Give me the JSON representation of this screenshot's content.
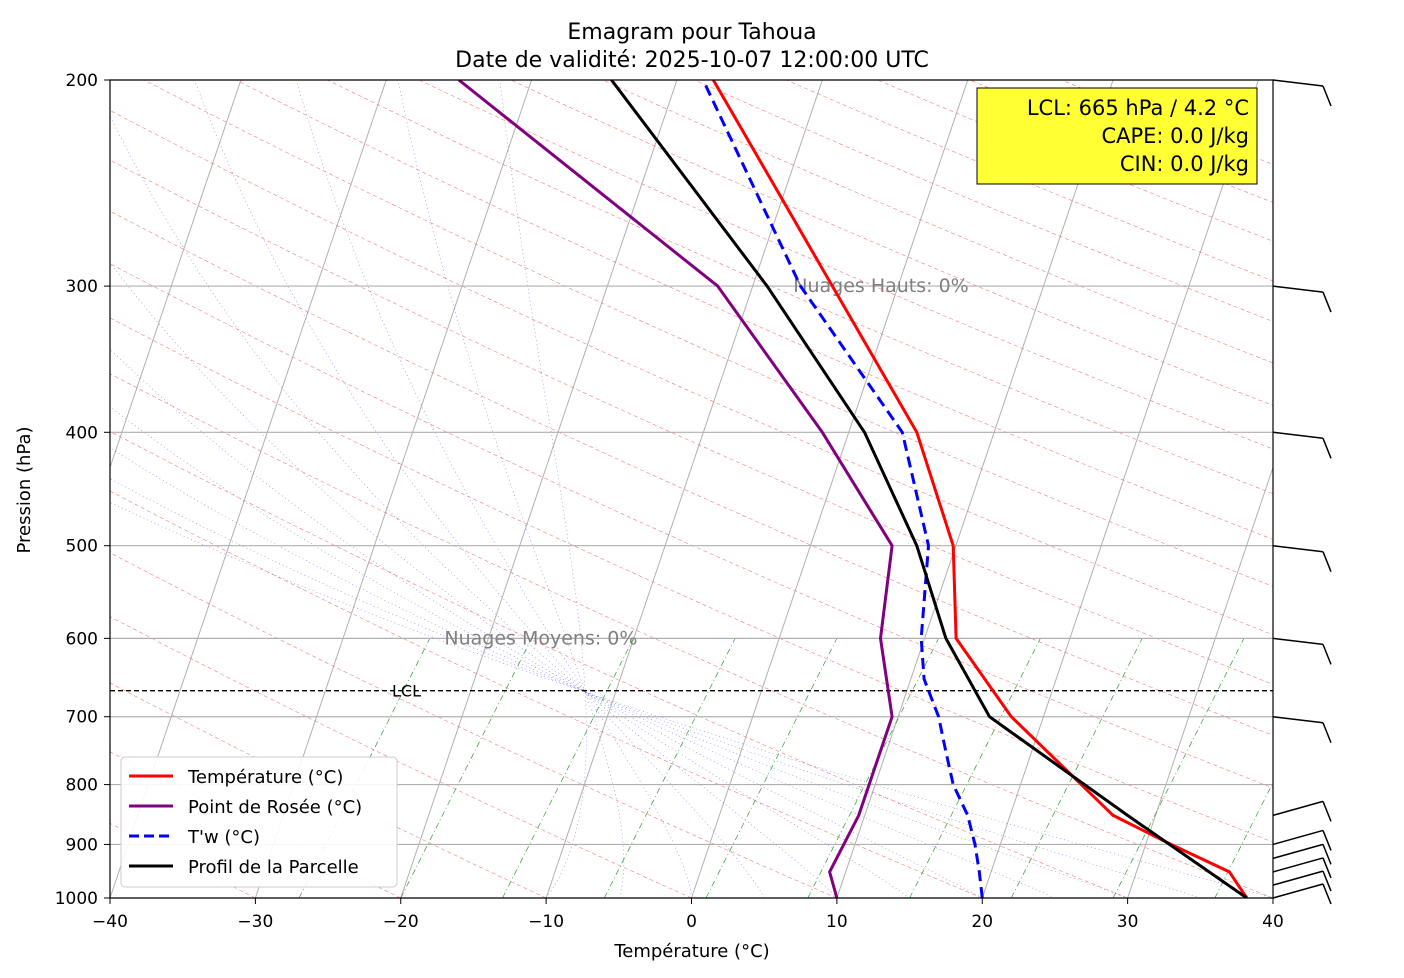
{
  "chart_data": {
    "type": "line",
    "title": "Emagram pour Tahoua",
    "subtitle": "Date de validité: 2025-10-07 12:00:00 UTC",
    "xlabel": "Température (°C)",
    "ylabel": "Pression (hPa)",
    "xlim": [
      -40,
      40
    ],
    "ylim": [
      1000,
      200
    ],
    "y_scale": "log",
    "grid": true,
    "x_ticks": [
      "−40",
      "−30",
      "−20",
      "−10",
      "0",
      "10",
      "20",
      "30",
      "40"
    ],
    "y_ticks": [
      "1000",
      "900",
      "800",
      "700",
      "600",
      "500",
      "400",
      "300",
      "200"
    ],
    "info_box": {
      "lines": [
        "LCL: 665 hPa / 4.2 °C",
        "CAPE: 0.0 J/kg",
        "CIN: 0.0 J/kg"
      ],
      "color": "#ffff33"
    },
    "lcl": {
      "pressure": 665,
      "label": "LCL"
    },
    "annotations": [
      {
        "text": "Nuages Hauts: 0%",
        "x": 7,
        "y": 300
      },
      {
        "text": "Nuages Moyens: 0%",
        "x": -17,
        "y": 600
      }
    ],
    "legend": {
      "position": "lower-left",
      "entries": [
        "Température (°C)",
        "Point de Rosée (°C)",
        "T'w (°C)",
        "Profil de la Parcelle"
      ]
    },
    "series": [
      {
        "name": "Température (°C)",
        "color": "#ff0000",
        "style": "solid",
        "points": [
          [
            38.2,
            1000
          ],
          [
            37.0,
            950
          ],
          [
            33.0,
            900
          ],
          [
            29.0,
            850
          ],
          [
            22.0,
            700
          ],
          [
            18.2,
            600
          ],
          [
            18.0,
            500
          ],
          [
            15.5,
            400
          ],
          [
            1.5,
            200
          ]
        ]
      },
      {
        "name": "Point de Rosée (°C)",
        "color": "#800080",
        "style": "solid",
        "points": [
          [
            10.0,
            1000
          ],
          [
            9.5,
            950
          ],
          [
            11.5,
            850
          ],
          [
            13.8,
            700
          ],
          [
            13.0,
            600
          ],
          [
            13.8,
            500
          ],
          [
            9.0,
            400
          ],
          [
            1.8,
            300
          ],
          [
            -16.0,
            200
          ]
        ]
      },
      {
        "name": "T'w (°C)",
        "color": "#0000ff",
        "style": "dashed",
        "points": [
          [
            20.0,
            1000
          ],
          [
            19.8,
            950
          ],
          [
            19.5,
            900
          ],
          [
            19.0,
            850
          ],
          [
            18.0,
            800
          ],
          [
            17.5,
            750
          ],
          [
            17.0,
            700
          ],
          [
            16.0,
            650
          ],
          [
            15.8,
            600
          ],
          [
            16.3,
            500
          ],
          [
            14.5,
            400
          ],
          [
            7.5,
            300
          ],
          [
            0.8,
            200
          ]
        ]
      },
      {
        "name": "Profil de la Parcelle",
        "color": "#000000",
        "style": "solid",
        "points": [
          [
            38.2,
            1000
          ],
          [
            30.0,
            850
          ],
          [
            20.5,
            700
          ],
          [
            17.5,
            600
          ],
          [
            15.5,
            500
          ],
          [
            11.9,
            400
          ],
          [
            5.2,
            300
          ],
          [
            -5.5,
            200
          ]
        ]
      }
    ],
    "wind_barbs_hpa": [
      200,
      300,
      400,
      500,
      600,
      700,
      850,
      900,
      925,
      950,
      975,
      1000
    ]
  }
}
